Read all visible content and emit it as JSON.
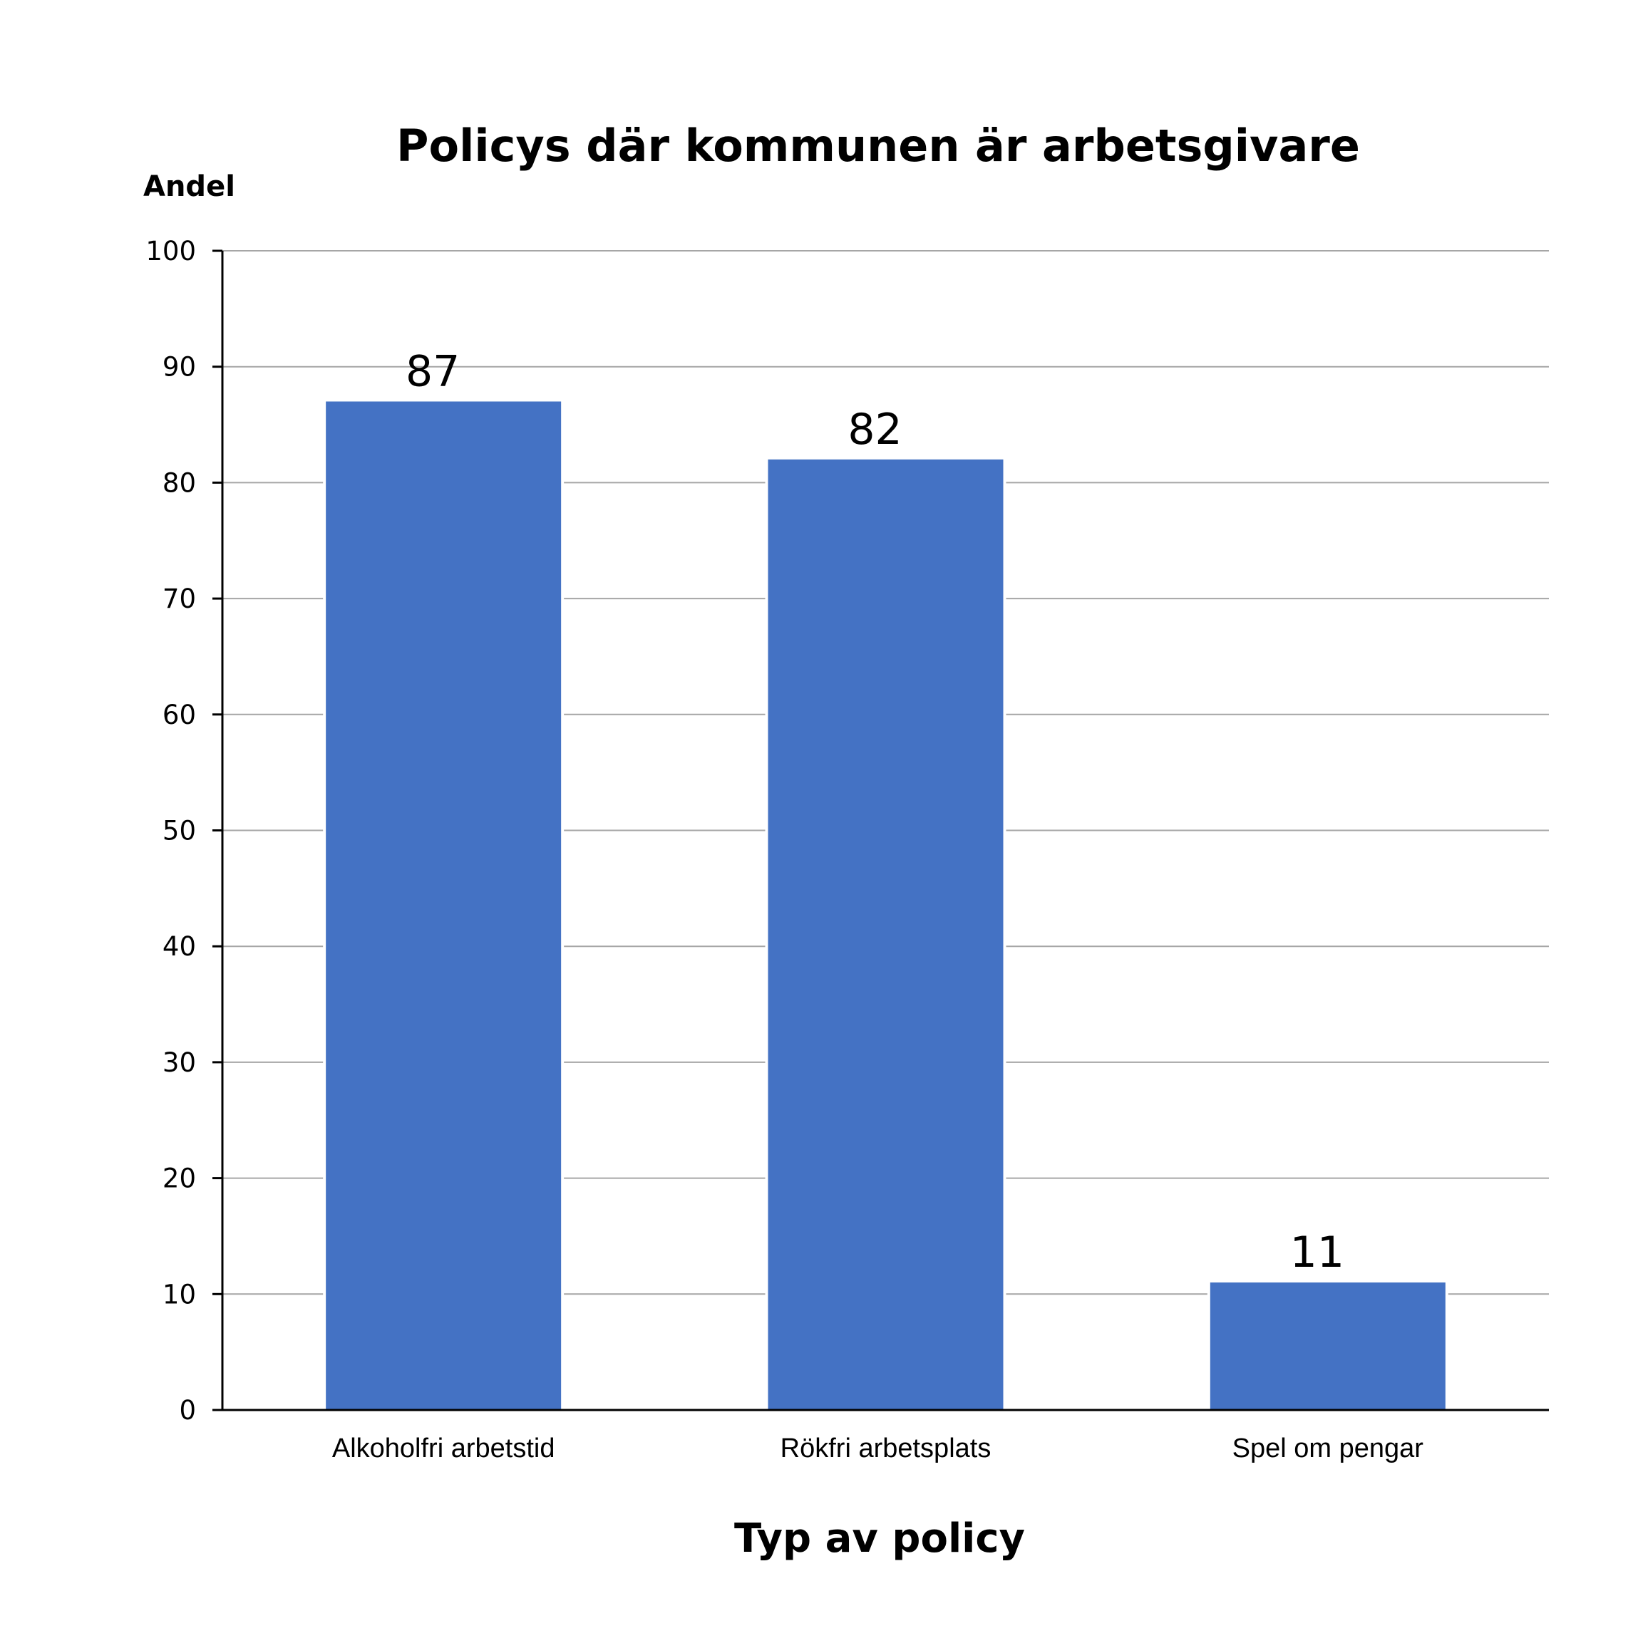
{
  "chart_data": {
    "type": "bar",
    "title": "Policys där kommunen är arbetsgivare",
    "ylabel": "Andel",
    "xlabel": "Typ av policy",
    "categories": [
      "Alkoholfri arbetstid",
      "Rökfri arbetsplats",
      "Spel om pengar"
    ],
    "values": [
      87,
      82,
      11
    ],
    "value_labels": [
      "87",
      "82",
      "11"
    ],
    "ylim": [
      0,
      100
    ],
    "yticks": [
      "0",
      "10",
      "20",
      "30",
      "40",
      "50",
      "60",
      "70",
      "80",
      "90",
      "100"
    ],
    "grid": true,
    "legend": "none",
    "bar_color": "#4472C4"
  }
}
